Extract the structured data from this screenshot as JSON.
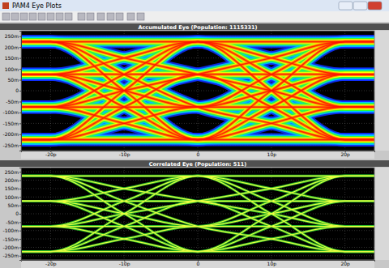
{
  "window": {
    "title": "PAM4 Eye Plots"
  },
  "chart_data": [
    {
      "type": "eye",
      "title": "Accumulated Eye   (Population: 1115331)",
      "line_style": "density",
      "grid": true,
      "x": [
        -24,
        -20,
        -10,
        0,
        10,
        20,
        24
      ],
      "xlim": [
        -24,
        24
      ],
      "xticks": [
        {
          "value": -20,
          "label": "-20p"
        },
        {
          "value": -10,
          "label": "-10p"
        },
        0,
        {
          "value": 10,
          "label": "10p"
        },
        {
          "value": 20,
          "label": "20p"
        }
      ],
      "ylim": [
        -0.275,
        0.275
      ],
      "yticks": [
        {
          "value": 0.25,
          "label": "250m"
        },
        {
          "value": 0.2,
          "label": "200m"
        },
        {
          "value": 0.15,
          "label": "150m"
        },
        {
          "value": 0.1,
          "label": "100m"
        },
        {
          "value": 0.05,
          "label": "50m"
        },
        0,
        {
          "value": -0.05,
          "label": "-50m"
        },
        {
          "value": -0.1,
          "label": "-100m"
        },
        {
          "value": -0.15,
          "label": "-150m"
        },
        {
          "value": -0.2,
          "label": "-200m"
        },
        {
          "value": -0.25,
          "label": "-250m"
        }
      ],
      "series": [
        {
          "values": [
            -0.225,
            -0.225,
            -0.225,
            -0.225,
            -0.225,
            -0.225,
            -0.225
          ]
        },
        {
          "values": [
            -0.075,
            -0.075,
            -0.15,
            -0.225,
            -0.15,
            -0.075,
            -0.075
          ]
        },
        {
          "values": [
            0.075,
            0.075,
            -0.075,
            -0.225,
            -0.075,
            0.075,
            0.075
          ]
        },
        {
          "values": [
            0.225,
            0.225,
            0,
            -0.225,
            0,
            0.225,
            0.225
          ]
        },
        {
          "values": [
            -0.225,
            -0.225,
            -0.15,
            -0.075,
            -0.075,
            -0.075,
            -0.075
          ]
        },
        {
          "values": [
            -0.075,
            -0.075,
            -0.075,
            -0.075,
            0,
            0.075,
            0.075
          ]
        },
        {
          "values": [
            0.075,
            0.075,
            0,
            -0.075,
            0.075,
            0.225,
            0.225
          ]
        },
        {
          "values": [
            0.225,
            0.225,
            0.075,
            -0.075,
            -0.15,
            -0.225,
            -0.225
          ]
        },
        {
          "values": [
            -0.225,
            -0.225,
            -0.075,
            0.075,
            0.075,
            0.075,
            0.075
          ]
        },
        {
          "values": [
            -0.075,
            -0.075,
            0,
            0.075,
            0.15,
            0.225,
            0.225
          ]
        },
        {
          "values": [
            0.075,
            0.075,
            0.075,
            0.075,
            -0.075,
            -0.225,
            -0.225
          ]
        },
        {
          "values": [
            0.225,
            0.225,
            0.15,
            0.075,
            0,
            -0.075,
            -0.075
          ]
        },
        {
          "values": [
            -0.225,
            -0.225,
            0,
            0.225,
            0.225,
            0.225,
            0.225
          ]
        },
        {
          "values": [
            -0.075,
            -0.075,
            0.075,
            0.225,
            0,
            -0.225,
            -0.225
          ]
        },
        {
          "values": [
            0.075,
            0.075,
            0.15,
            0.225,
            0.075,
            -0.075,
            -0.075
          ]
        },
        {
          "values": [
            0.225,
            0.225,
            0.225,
            0.225,
            0.15,
            0.075,
            0.075
          ]
        }
      ]
    },
    {
      "type": "eye",
      "title": "Correlated Eye   (Population: 511)",
      "line_style": "solid",
      "grid": true,
      "x": [
        -24,
        -20,
        -10,
        0,
        10,
        20,
        24
      ],
      "xlim": [
        -24,
        24
      ],
      "xticks": [
        {
          "value": -20,
          "label": "-20p"
        },
        {
          "value": -10,
          "label": "-10p"
        },
        0,
        {
          "value": 10,
          "label": "10p"
        },
        {
          "value": 20,
          "label": "20p"
        }
      ],
      "ylim": [
        -0.275,
        0.275
      ],
      "yticks": [
        {
          "value": 0.25,
          "label": "250m"
        },
        {
          "value": 0.2,
          "label": "200m"
        },
        {
          "value": 0.15,
          "label": "150m"
        },
        {
          "value": 0.1,
          "label": "100m"
        },
        {
          "value": 0.05,
          "label": "50m"
        },
        0,
        {
          "value": -0.05,
          "label": "-50m"
        },
        {
          "value": -0.1,
          "label": "-100m"
        },
        {
          "value": -0.15,
          "label": "-150m"
        },
        {
          "value": -0.2,
          "label": "-200m"
        },
        {
          "value": -0.25,
          "label": "-250m"
        }
      ],
      "series": [
        {
          "values": [
            -0.225,
            -0.225,
            -0.225,
            -0.225,
            -0.225,
            -0.225,
            -0.225
          ]
        },
        {
          "values": [
            -0.075,
            -0.075,
            -0.15,
            -0.225,
            -0.15,
            -0.075,
            -0.075
          ]
        },
        {
          "values": [
            0.075,
            0.075,
            -0.075,
            -0.225,
            -0.075,
            0.075,
            0.075
          ]
        },
        {
          "values": [
            0.225,
            0.225,
            0,
            -0.225,
            0,
            0.225,
            0.225
          ]
        },
        {
          "values": [
            -0.225,
            -0.225,
            -0.15,
            -0.075,
            -0.075,
            -0.075,
            -0.075
          ]
        },
        {
          "values": [
            -0.075,
            -0.075,
            -0.075,
            -0.075,
            0,
            0.075,
            0.075
          ]
        },
        {
          "values": [
            0.075,
            0.075,
            0,
            -0.075,
            0.075,
            0.225,
            0.225
          ]
        },
        {
          "values": [
            0.225,
            0.225,
            0.075,
            -0.075,
            -0.15,
            -0.225,
            -0.225
          ]
        },
        {
          "values": [
            -0.225,
            -0.225,
            -0.075,
            0.075,
            0.075,
            0.075,
            0.075
          ]
        },
        {
          "values": [
            -0.075,
            -0.075,
            0,
            0.075,
            0.15,
            0.225,
            0.225
          ]
        },
        {
          "values": [
            0.075,
            0.075,
            0.075,
            0.075,
            -0.075,
            -0.225,
            -0.225
          ]
        },
        {
          "values": [
            0.225,
            0.225,
            0.15,
            0.075,
            0,
            -0.075,
            -0.075
          ]
        },
        {
          "values": [
            -0.225,
            -0.225,
            0,
            0.225,
            0.225,
            0.225,
            0.225
          ]
        },
        {
          "values": [
            -0.075,
            -0.075,
            0.075,
            0.225,
            0,
            -0.225,
            -0.225
          ]
        },
        {
          "values": [
            0.075,
            0.075,
            0.15,
            0.225,
            0.075,
            -0.075,
            -0.075
          ]
        },
        {
          "values": [
            0.225,
            0.225,
            0.225,
            0.225,
            0.15,
            0.075,
            0.075
          ]
        }
      ]
    }
  ]
}
